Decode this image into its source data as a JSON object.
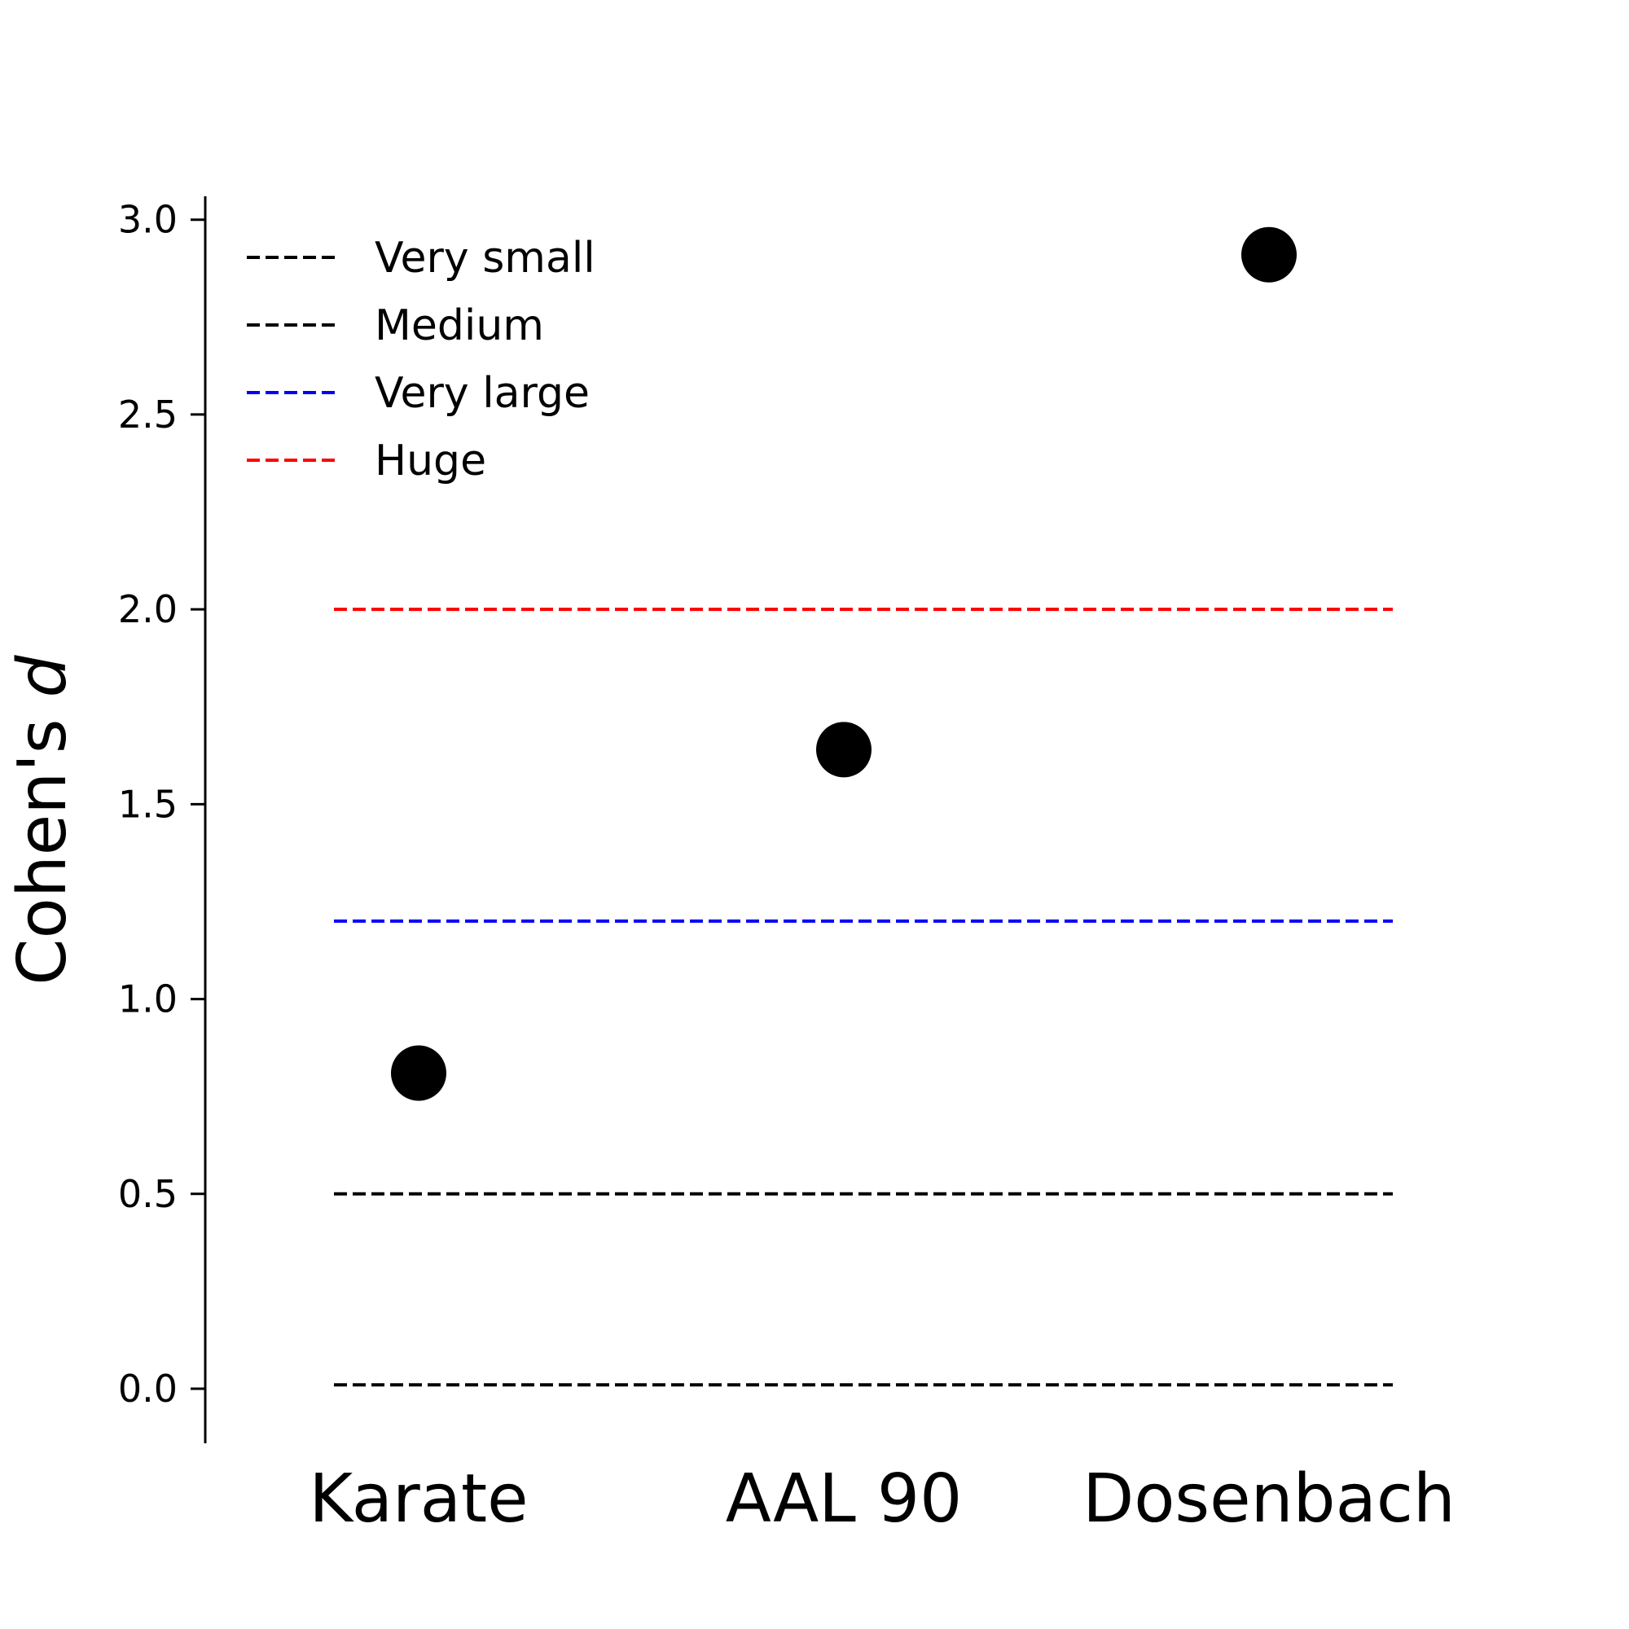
{
  "chart_data": {
    "type": "scatter",
    "categories": [
      "Karate",
      "AAL 90",
      "Dosenbach"
    ],
    "values": [
      0.81,
      1.64,
      2.91
    ],
    "ylabel_text": "Cohen's ",
    "ylabel_italic": "d",
    "ylim": [
      -0.14,
      3.06
    ],
    "yticks": [
      0.0,
      0.5,
      1.0,
      1.5,
      2.0,
      2.5,
      3.0
    ],
    "ytick_labels": [
      "0.0",
      "0.5",
      "1.0",
      "1.5",
      "2.0",
      "2.5",
      "3.0"
    ],
    "grid": false,
    "legend_position": "top-left",
    "marker_color": "#000000",
    "reference_lines": [
      {
        "name": "Very small",
        "value": 0.01,
        "color": "#000000"
      },
      {
        "name": "Medium",
        "value": 0.5,
        "color": "#000000"
      },
      {
        "name": "Very large",
        "value": 1.2,
        "color": "#0000ff"
      },
      {
        "name": "Huge",
        "value": 2.0,
        "color": "#ff0000"
      }
    ]
  }
}
